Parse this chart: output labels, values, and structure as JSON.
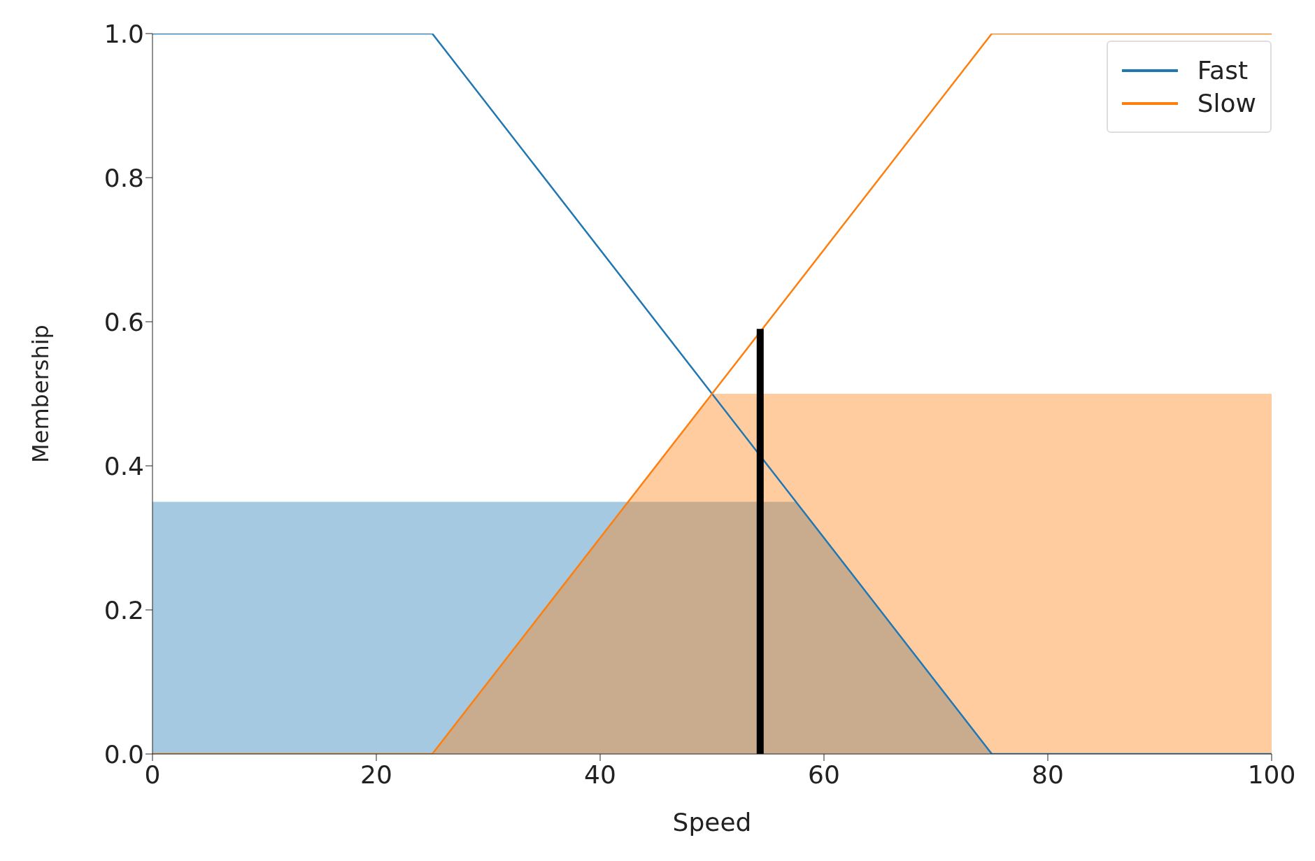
{
  "chart_data": {
    "type": "line",
    "xlabel": "Speed",
    "ylabel": "Membership",
    "xlim": [
      0,
      100
    ],
    "xticks": [
      0,
      20,
      40,
      60,
      80,
      100
    ],
    "ylim": [
      0,
      1
    ],
    "yticks": [
      {
        "value": 0,
        "label": "0.0"
      },
      {
        "value": 0.2,
        "label": "0.2"
      },
      {
        "value": 0.4,
        "label": "0.4"
      },
      {
        "value": 0.6,
        "label": "0.6"
      },
      {
        "value": 0.8,
        "label": "0.8"
      },
      {
        "value": 1,
        "label": "1.0"
      }
    ],
    "grid": false,
    "legend": "top right",
    "series": [
      {
        "type": "area",
        "color": "#1f77b4",
        "x": [
          0,
          57.5,
          75
        ],
        "values": [
          0.35,
          0.35,
          0
        ]
      },
      {
        "type": "area",
        "color": "#ff7f0e",
        "x": [
          25,
          50,
          100
        ],
        "values": [
          0,
          0.5,
          0.5
        ]
      },
      {
        "name": "Fast",
        "color": "#1f77b4",
        "x": [
          0,
          25,
          75,
          100
        ],
        "values": [
          1,
          1,
          0,
          0
        ]
      },
      {
        "name": "Slow",
        "color": "#ff7f0e",
        "x": [
          0,
          25,
          75,
          100
        ],
        "values": [
          0,
          0,
          1,
          1
        ]
      },
      {
        "color": "#000000",
        "x": [
          54.3,
          54.3
        ],
        "values": [
          0,
          0.59
        ]
      }
    ]
  }
}
